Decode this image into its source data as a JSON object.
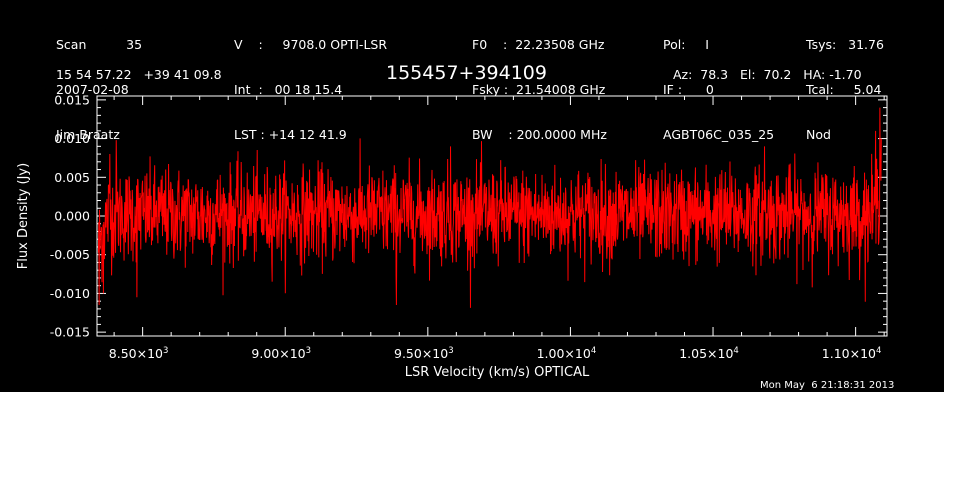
{
  "header": {
    "col1": [
      "Scan          35",
      "2007-02-08",
      "Jim Braatz"
    ],
    "col2": [
      "V    :     9708.0 OPTI-LSR",
      "Int  :   00 18 15.4",
      "LST : +14 12 41.9"
    ],
    "col3": [
      "F0    :  22.23508 GHz",
      "Fsky :  21.54008 GHz",
      "BW    : 200.0000 MHz"
    ],
    "col4": [
      "Pol:     I",
      "IF :      0",
      "AGBT06C_035_25"
    ],
    "col5": [
      "Tsys:   31.76",
      "Tcal:     5.04",
      "Nod"
    ],
    "coords": "15 54 57.22   +39 41 09.8",
    "source": "155457+394109",
    "azelha": "Az:  78.3   El:  70.2   HA: -1.70"
  },
  "timestamp": "Mon May  6 21:18:31 2013",
  "chart_data": {
    "type": "line",
    "title": "155457+394109",
    "xlabel": "LSR Velocity (km/s) OPTICAL",
    "ylabel": "Flux Density (Jy)",
    "xlim": [
      8340,
      11110
    ],
    "ylim": [
      -0.0155,
      0.0155
    ],
    "x_tick_values": [
      8500,
      9000,
      9500,
      10000,
      10500,
      11000
    ],
    "x_tick_labels": [
      {
        "mant": "8.50×10",
        "exp": "3"
      },
      {
        "mant": "9.00×10",
        "exp": "3"
      },
      {
        "mant": "9.50×10",
        "exp": "3"
      },
      {
        "mant": "1.00×10",
        "exp": "4"
      },
      {
        "mant": "1.05×10",
        "exp": "4"
      },
      {
        "mant": "1.10×10",
        "exp": "4"
      }
    ],
    "y_tick_values": [
      -0.015,
      -0.01,
      -0.005,
      0.0,
      0.005,
      0.01,
      0.015
    ],
    "y_tick_labels": [
      "-0.015",
      "-0.010",
      "-0.005",
      "0.000",
      "0.005",
      "0.010",
      "0.015"
    ],
    "series": [
      {
        "color": "#ff0000",
        "noise_rms": 0.003,
        "mean": 0.0002,
        "features": [
          {
            "x": 8348,
            "y": -0.0115
          },
          {
            "x": 8362,
            "y": -0.01
          },
          {
            "x": 8385,
            "y": 0.008
          },
          {
            "x": 8408,
            "y": 0.0098
          },
          {
            "x": 8480,
            "y": -0.0105
          },
          {
            "x": 9390,
            "y": -0.0115
          },
          {
            "x": 9580,
            "y": 0.009
          },
          {
            "x": 10680,
            "y": 0.009
          },
          {
            "x": 11070,
            "y": 0.011
          },
          {
            "x": 11085,
            "y": 0.014
          },
          {
            "x": 11090,
            "y": 0.01
          }
        ]
      }
    ]
  }
}
